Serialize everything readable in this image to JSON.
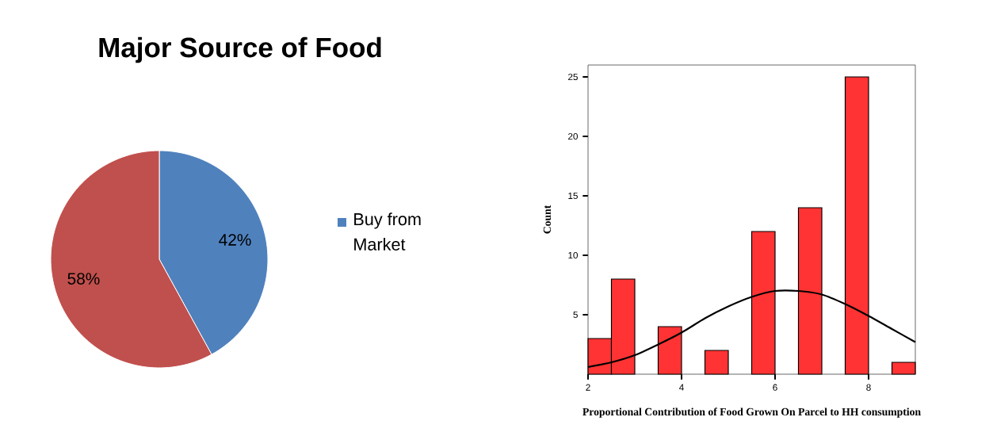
{
  "chart_data": [
    {
      "type": "pie",
      "title": "Major Source of Food",
      "categories": [
        "Buy from Market",
        null
      ],
      "values": [
        42,
        58
      ],
      "colors": [
        "#4f81bd",
        "#c0504d"
      ],
      "value_labels": [
        "42%",
        "58%"
      ],
      "legend": "right"
    },
    {
      "type": "histogram",
      "xlabel": "Proportional Contribution of Food Grown On Parcel to HH consumption",
      "ylabel": "Count",
      "xlim": [
        2,
        9
      ],
      "ylim": [
        0,
        26
      ],
      "xticks": [
        2,
        4,
        6,
        8
      ],
      "yticks": [
        5,
        10,
        15,
        20,
        25
      ],
      "series": [
        {
          "type": "histogram",
          "color": "#ff3333",
          "bins": [
            2,
            2.5,
            3,
            3.5,
            4,
            4.5,
            5,
            5.5,
            6,
            6.5,
            7,
            7.5,
            8,
            8.5,
            9
          ],
          "values": [
            3,
            8,
            0,
            4,
            0,
            2,
            0,
            12,
            0,
            14,
            0,
            25,
            0,
            1
          ]
        },
        {
          "type": "line",
          "color": "#000000",
          "x": [
            2,
            2.5,
            3,
            3.5,
            4,
            4.5,
            5,
            5.5,
            6,
            6.5,
            7,
            7.5,
            8,
            8.5,
            9
          ],
          "values": [
            0.6,
            1.0,
            1.6,
            2.5,
            3.5,
            4.7,
            5.7,
            6.5,
            7.0,
            7.0,
            6.7,
            5.9,
            4.9,
            3.8,
            2.7
          ]
        }
      ]
    }
  ]
}
